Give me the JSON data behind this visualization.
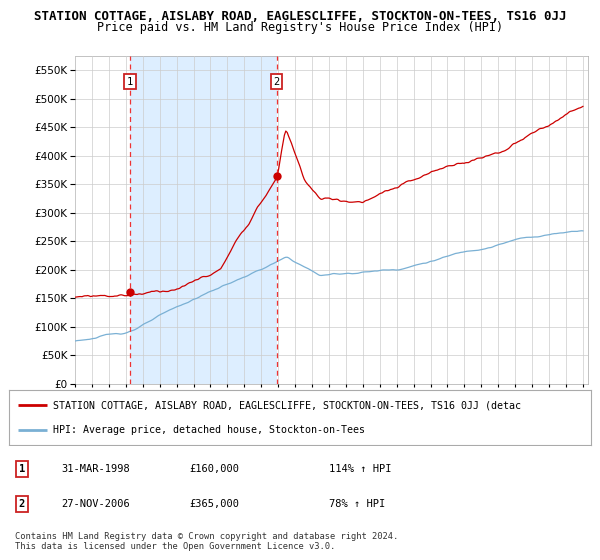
{
  "title": "STATION COTTAGE, AISLABY ROAD, EAGLESCLIFFE, STOCKTON-ON-TEES, TS16 0JJ",
  "subtitle": "Price paid vs. HM Land Registry's House Price Index (HPI)",
  "title_fontsize": 9,
  "subtitle_fontsize": 8.5,
  "background_color": "#ffffff",
  "grid_color": "#cccccc",
  "plot_bg_color": "#ffffff",
  "shade_color": "#ddeeff",
  "ylim": [
    0,
    575000
  ],
  "yticks": [
    0,
    50000,
    100000,
    150000,
    200000,
    250000,
    300000,
    350000,
    400000,
    450000,
    500000,
    550000
  ],
  "x_start_year": 1995,
  "x_end_year": 2025,
  "sale1_year": 1998.25,
  "sale1_price": 160000,
  "sale2_year": 2006.917,
  "sale2_price": 365000,
  "red_line_color": "#cc0000",
  "blue_line_color": "#7ab0d4",
  "vline_color": "#ee3333",
  "legend_red_label": "STATION COTTAGE, AISLABY ROAD, EAGLESCLIFFE, STOCKTON-ON-TEES, TS16 0JJ (detac",
  "legend_blue_label": "HPI: Average price, detached house, Stockton-on-Tees",
  "footnote": "Contains HM Land Registry data © Crown copyright and database right 2024.\nThis data is licensed under the Open Government Licence v3.0.",
  "table_rows": [
    {
      "num": "1",
      "date": "31-MAR-1998",
      "price": "£160,000",
      "hpi": "114% ↑ HPI"
    },
    {
      "num": "2",
      "date": "27-NOV-2006",
      "price": "£365,000",
      "hpi": "78% ↑ HPI"
    }
  ]
}
